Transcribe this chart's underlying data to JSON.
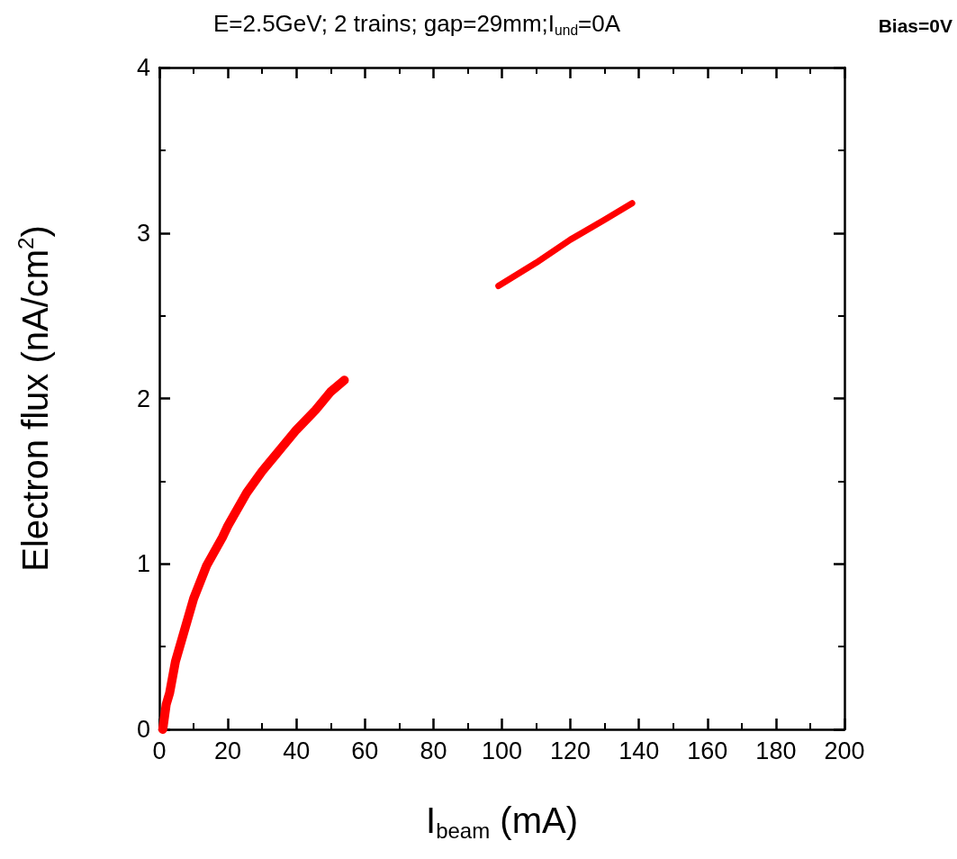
{
  "chart_data": {
    "type": "line",
    "title": "E=2.5GeV; 2 trains; gap=29mm;I$_{und}$=0A",
    "annotations": [
      "Bias=0V"
    ],
    "xlabel": "I$_{beam}$ (mA)",
    "ylabel": "Electron flux (nA/cm$^{2}$)",
    "xlim": [
      0,
      200
    ],
    "xticks": [
      0,
      20,
      40,
      60,
      80,
      100,
      120,
      140,
      160,
      180,
      200
    ],
    "ylim": [
      0,
      4
    ],
    "yticks": [
      0,
      1,
      2,
      3,
      4
    ],
    "grid": false,
    "marker": "none",
    "line_style": "solid",
    "series": [
      {
        "color": "#ff0000",
        "x": [
          1,
          2,
          3,
          4.7,
          10,
          13.8,
          18.4,
          20,
          25.5,
          30,
          35.6,
          40,
          45.6,
          50,
          54
        ],
        "values": [
          0.0,
          0.15,
          0.22,
          0.41,
          0.79,
          0.99,
          1.16,
          1.23,
          1.43,
          1.56,
          1.7,
          1.81,
          1.93,
          2.04,
          2.11
        ]
      },
      {
        "color": "#ff0000",
        "x": [
          99,
          110,
          120,
          130,
          138
        ],
        "values": [
          2.68,
          2.82,
          2.96,
          3.08,
          3.18
        ]
      }
    ]
  }
}
